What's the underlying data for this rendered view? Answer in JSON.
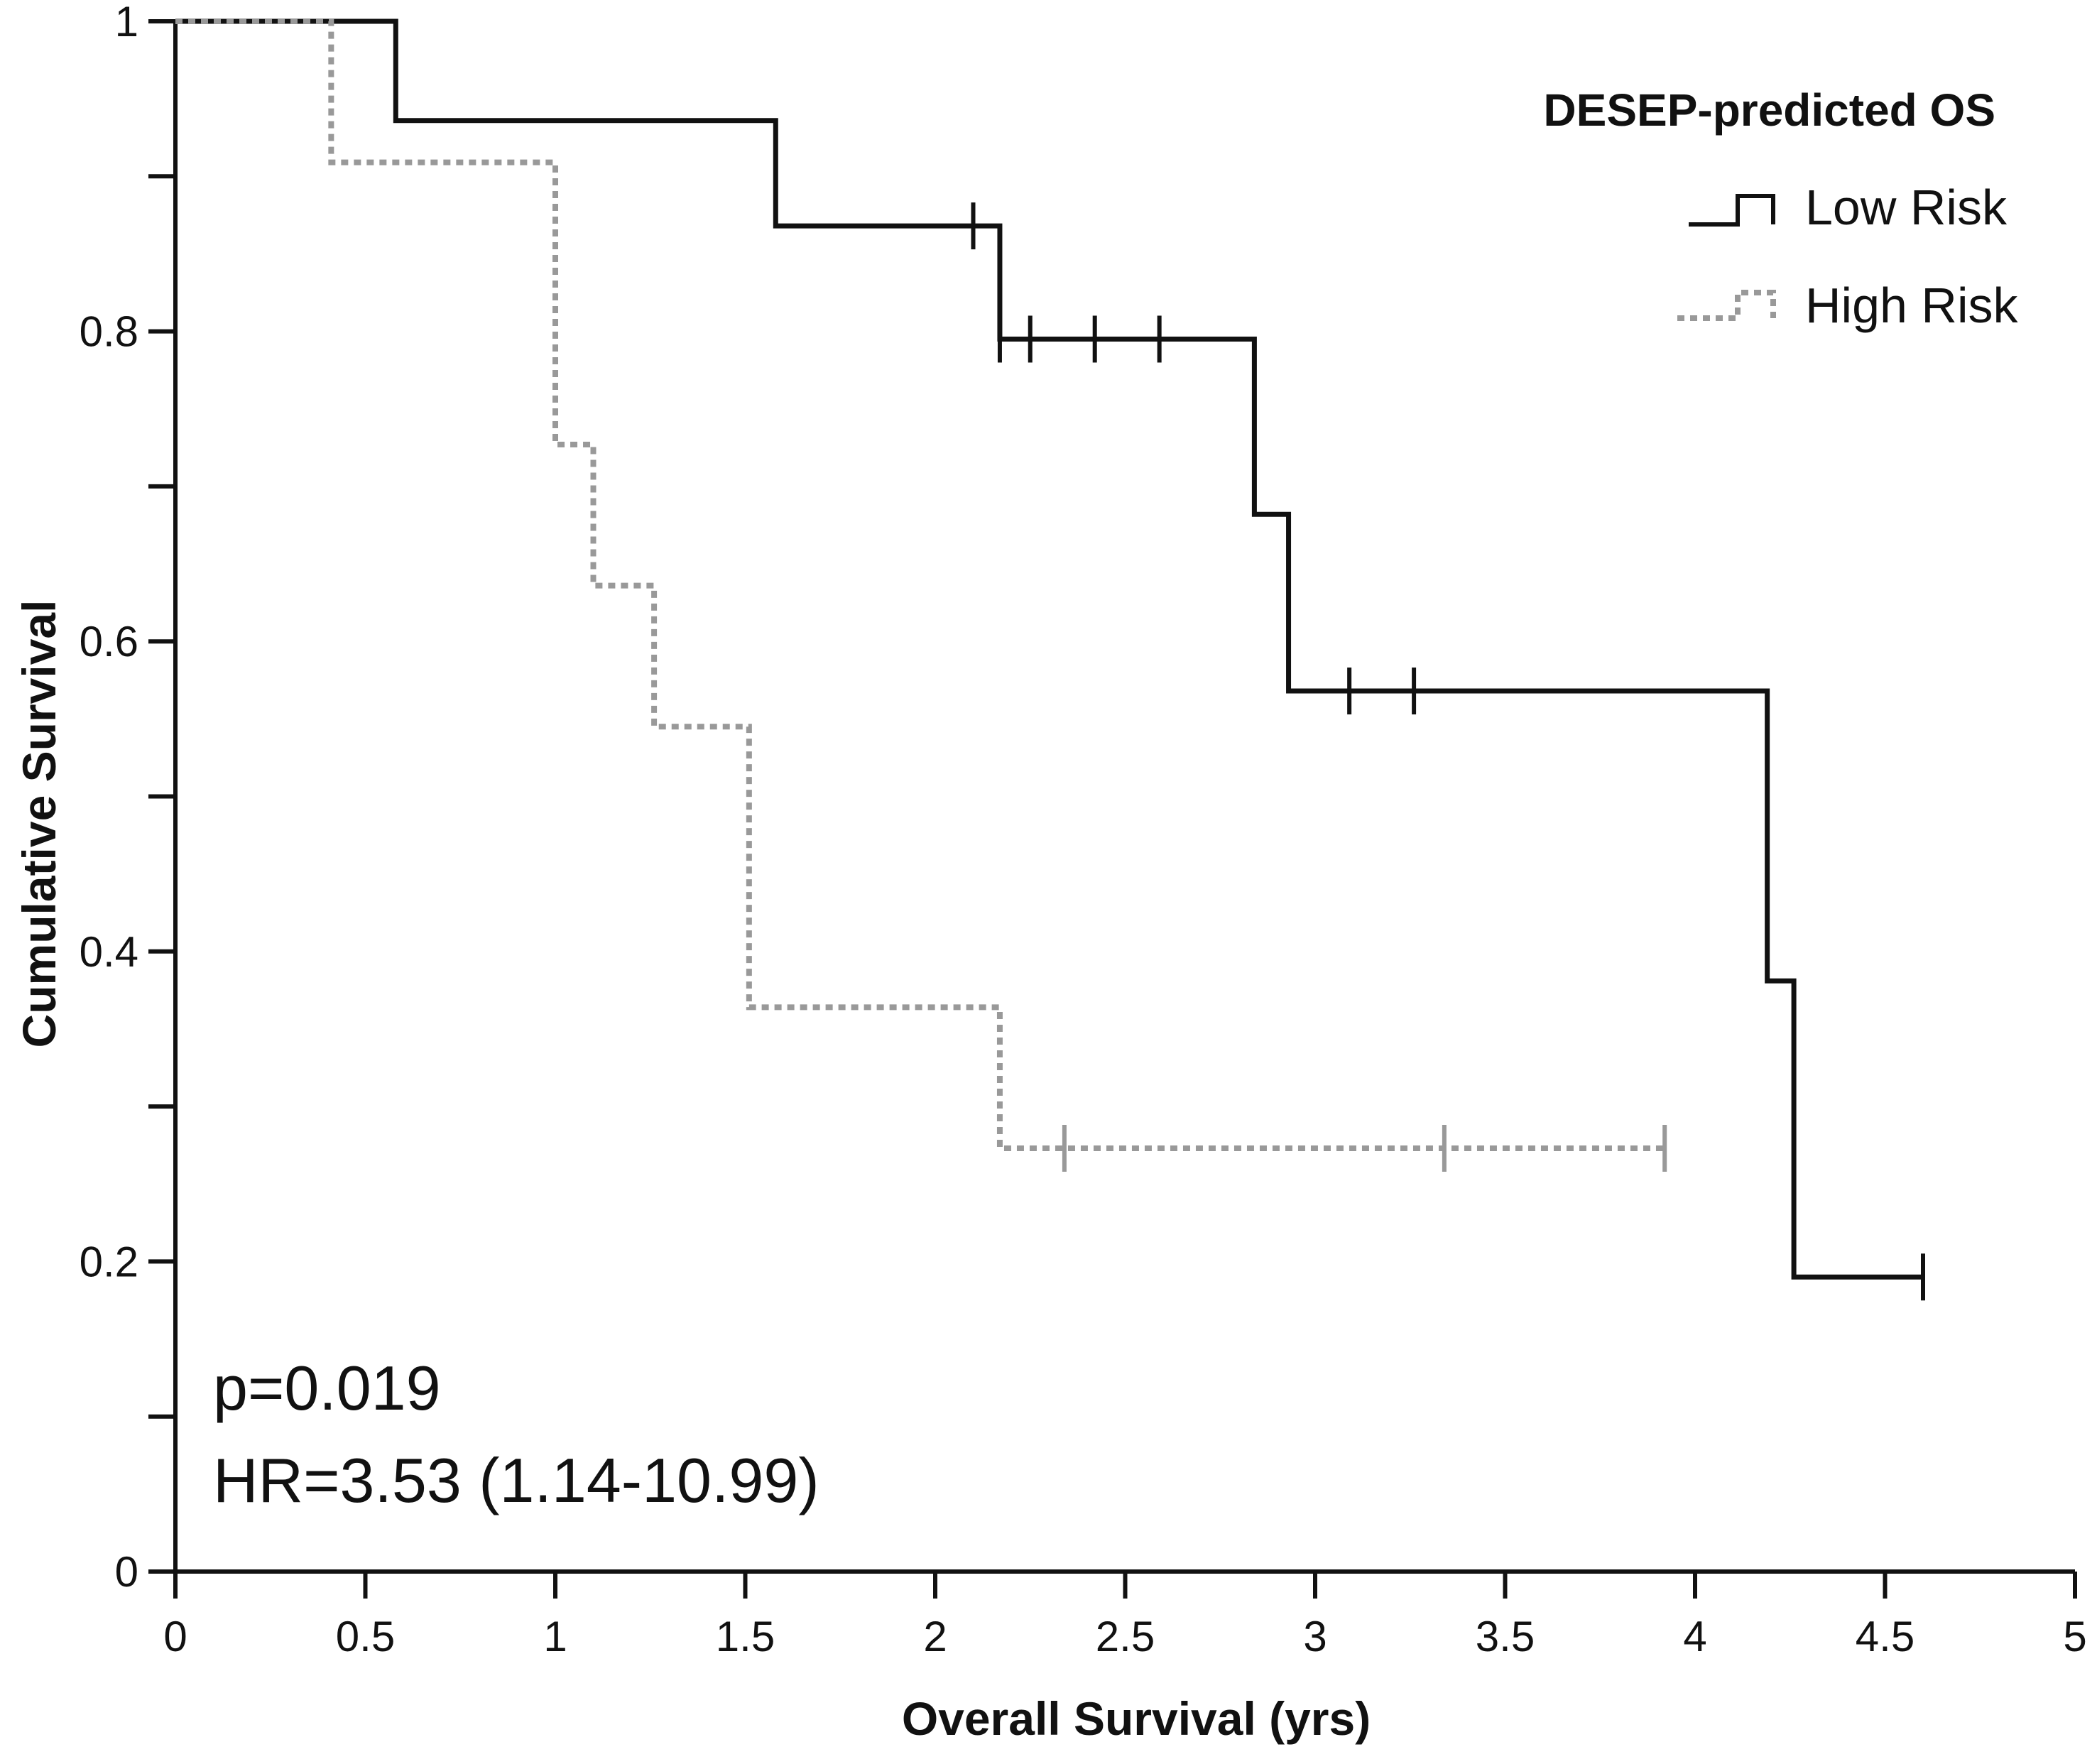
{
  "chart_data": {
    "type": "line",
    "subtype": "kaplan-meier-step",
    "title": "",
    "xlabel": "Overall Survival (yrs)",
    "ylabel": "Cumulative Survival",
    "xlim": [
      0,
      5
    ],
    "ylim": [
      0,
      1
    ],
    "x_ticks": [
      0,
      0.5,
      1,
      1.5,
      2,
      2.5,
      3,
      3.5,
      4,
      4.5,
      5
    ],
    "x_tick_labels": [
      "0",
      "0.5",
      "1",
      "1.5",
      "2",
      "2.5",
      "3",
      "3.5",
      "4",
      "4.5",
      "5"
    ],
    "y_major_ticks": [
      0,
      0.2,
      0.4,
      0.6,
      0.8,
      1
    ],
    "y_tick_labels": [
      "0",
      "0.2",
      "0.4",
      "0.6",
      "0.8",
      "1"
    ],
    "y_minor_ticks": [
      0.1,
      0.3,
      0.5,
      0.7,
      0.9
    ],
    "grid": false,
    "legend": {
      "title": "DESEP-predicted OS",
      "position": "top-right",
      "entries": [
        "Low Risk",
        "High Risk"
      ]
    },
    "series": [
      {
        "name": "Low Risk",
        "color": "#111111",
        "style": "solid",
        "steps": [
          [
            0,
            1.0
          ],
          [
            0.58,
            0.936
          ],
          [
            1.58,
            0.868
          ],
          [
            2.17,
            0.795
          ],
          [
            2.84,
            0.682
          ],
          [
            2.93,
            0.568
          ],
          [
            4.19,
            0.381
          ],
          [
            4.26,
            0.19
          ]
        ],
        "end_x": 4.6,
        "censored": [
          [
            2.1,
            0.868
          ],
          [
            2.17,
            0.795
          ],
          [
            2.25,
            0.795
          ],
          [
            2.42,
            0.795
          ],
          [
            2.59,
            0.795
          ],
          [
            3.09,
            0.568
          ],
          [
            3.26,
            0.568
          ],
          [
            4.6,
            0.19
          ]
        ]
      },
      {
        "name": "High Risk",
        "color": "#999999",
        "style": "dotted",
        "steps": [
          [
            0,
            1.0
          ],
          [
            0.41,
            0.909
          ],
          [
            1.0,
            0.727
          ],
          [
            1.1,
            0.636
          ],
          [
            1.26,
            0.545
          ],
          [
            1.51,
            0.364
          ],
          [
            2.17,
            0.273
          ]
        ],
        "end_x": 3.92,
        "censored": [
          [
            2.34,
            0.273
          ],
          [
            3.34,
            0.273
          ],
          [
            3.92,
            0.273
          ]
        ]
      }
    ],
    "annotations": [
      "p=0.019",
      "HR=3.53 (1.14-10.99)"
    ]
  }
}
